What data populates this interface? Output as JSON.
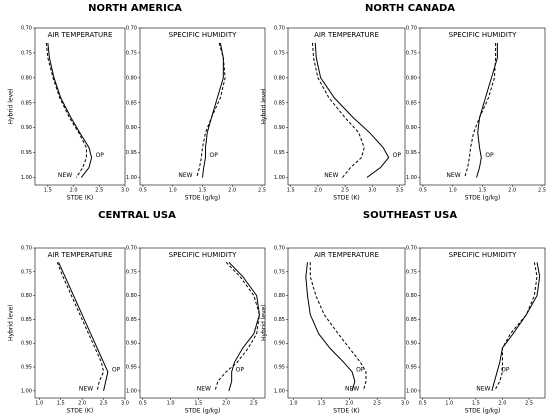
{
  "figure_titles": [
    "NORTH AMERICA",
    "NORTH CANADA",
    "CENTRAL USA",
    "SOUTHEAST USA"
  ],
  "chart_data": [
    {
      "type": "line",
      "title": "AIR TEMPERATURE",
      "x_label": "STDE (K)",
      "y_label": "Hybrid level",
      "y": [
        0.73,
        0.76,
        0.8,
        0.84,
        0.88,
        0.91,
        0.94,
        0.96,
        0.98,
        1.0
      ],
      "xlim": [
        1.25,
        3.0
      ],
      "xticks": [
        1.5,
        {
          "value": 2,
          "label": "2.0"
        },
        2.5,
        {
          "value": 3,
          "label": "3.0"
        }
      ],
      "ylim": [
        1.015,
        0.7
      ],
      "yticks": [
        {
          "value": 0.7,
          "label": "0.70"
        },
        0.75,
        {
          "value": 0.8,
          "label": "0.80"
        },
        0.85,
        {
          "value": 0.9,
          "label": "0.90"
        },
        0.95,
        {
          "value": 1,
          "label": "1.00"
        }
      ],
      "series": [
        {
          "name": "OP",
          "color": "#000000",
          "dash": false,
          "values": [
            1.5,
            1.53,
            1.62,
            1.75,
            1.95,
            2.12,
            2.3,
            2.35,
            2.3,
            2.15
          ]
        },
        {
          "name": "NEW",
          "color": "#000000",
          "dash": true,
          "values": [
            1.47,
            1.5,
            1.6,
            1.73,
            1.92,
            2.1,
            2.25,
            2.25,
            2.18,
            2.05
          ]
        }
      ]
    },
    {
      "type": "line",
      "title": "SPECIFIC HUMIDITY",
      "x_label": "STDE (g/kg)",
      "y": [
        0.73,
        0.76,
        0.8,
        0.84,
        0.88,
        0.91,
        0.94,
        0.96,
        0.98,
        1.0
      ],
      "xlim": [
        0.45,
        2.55
      ],
      "xticks": [
        0.5,
        {
          "value": 1,
          "label": "1.0"
        },
        1.5,
        {
          "value": 2,
          "label": "2.0"
        },
        2.5
      ],
      "ylim": [
        1.015,
        0.7
      ],
      "yticks": [
        {
          "value": 0.7,
          "label": "0.70"
        },
        0.75,
        {
          "value": 0.8,
          "label": "0.80"
        },
        0.85,
        {
          "value": 0.9,
          "label": "0.90"
        },
        0.95,
        {
          "value": 1,
          "label": "1.00"
        }
      ],
      "series": [
        {
          "name": "OP",
          "color": "#000000",
          "dash": false,
          "values": [
            1.8,
            1.85,
            1.85,
            1.75,
            1.65,
            1.58,
            1.55,
            1.55,
            1.52,
            1.5
          ]
        },
        {
          "name": "NEW",
          "color": "#000000",
          "dash": true,
          "values": [
            1.78,
            1.85,
            1.88,
            1.8,
            1.65,
            1.55,
            1.5,
            1.48,
            1.45,
            1.4
          ]
        }
      ]
    },
    {
      "type": "line",
      "title": "AIR TEMPERATURE",
      "x_label": "STDE (K)",
      "y_label": "Hybrid level",
      "y": [
        0.73,
        0.76,
        0.8,
        0.84,
        0.88,
        0.91,
        0.94,
        0.96,
        0.98,
        1.0
      ],
      "xlim": [
        1.45,
        3.6
      ],
      "xticks": [
        1.5,
        {
          "value": 2,
          "label": "2.0"
        },
        2.5,
        {
          "value": 3,
          "label": "3.0"
        },
        3.5
      ],
      "ylim": [
        1.015,
        0.7
      ],
      "yticks": [
        {
          "value": 0.7,
          "label": "0.70"
        },
        0.75,
        {
          "value": 0.8,
          "label": "0.80"
        },
        0.85,
        {
          "value": 0.9,
          "label": "0.90"
        },
        0.95,
        {
          "value": 1,
          "label": "1.00"
        }
      ],
      "series": [
        {
          "name": "OP",
          "color": "#000000",
          "dash": false,
          "values": [
            1.95,
            1.97,
            2.05,
            2.3,
            2.65,
            2.95,
            3.2,
            3.3,
            3.15,
            2.9
          ]
        },
        {
          "name": "NEW",
          "color": "#000000",
          "dash": true,
          "values": [
            1.9,
            1.92,
            2.0,
            2.2,
            2.5,
            2.75,
            2.85,
            2.8,
            2.6,
            2.45
          ]
        }
      ]
    },
    {
      "type": "line",
      "title": "SPECIFIC HUMIDITY",
      "x_label": "STDE (g/kg)",
      "y": [
        0.73,
        0.76,
        0.8,
        0.84,
        0.88,
        0.91,
        0.94,
        0.96,
        0.98,
        1.0
      ],
      "xlim": [
        0.45,
        2.55
      ],
      "xticks": [
        0.5,
        {
          "value": 1,
          "label": "1.0"
        },
        1.5,
        {
          "value": 2,
          "label": "2.0"
        },
        2.5
      ],
      "ylim": [
        1.015,
        0.7
      ],
      "yticks": [
        {
          "value": 0.7,
          "label": "0.70"
        },
        0.75,
        {
          "value": 0.8,
          "label": "0.80"
        },
        0.85,
        {
          "value": 0.9,
          "label": "0.90"
        },
        0.95,
        {
          "value": 1,
          "label": "1.00"
        }
      ],
      "series": [
        {
          "name": "OP",
          "color": "#000000",
          "dash": false,
          "values": [
            1.75,
            1.75,
            1.65,
            1.55,
            1.45,
            1.42,
            1.45,
            1.48,
            1.45,
            1.4
          ]
        },
        {
          "name": "NEW",
          "color": "#000000",
          "dash": true,
          "values": [
            1.72,
            1.72,
            1.7,
            1.6,
            1.45,
            1.35,
            1.3,
            1.28,
            1.25,
            1.2
          ]
        }
      ]
    },
    {
      "type": "line",
      "title": "AIR TEMPERATURE",
      "x_label": "STDE (K)",
      "y_label": "Hybrid level",
      "y": [
        0.73,
        0.76,
        0.8,
        0.84,
        0.88,
        0.91,
        0.94,
        0.96,
        0.98,
        1.0
      ],
      "xlim": [
        0.9,
        3.0
      ],
      "xticks": [
        {
          "value": 1,
          "label": "1.0"
        },
        1.5,
        {
          "value": 2,
          "label": "2.0"
        },
        2.5,
        {
          "value": 3,
          "label": "3.0"
        }
      ],
      "ylim": [
        1.015,
        0.7
      ],
      "yticks": [
        {
          "value": 0.7,
          "label": "0.70"
        },
        0.75,
        {
          "value": 0.8,
          "label": "0.80"
        },
        0.85,
        {
          "value": 0.9,
          "label": "0.90"
        },
        0.95,
        {
          "value": 1,
          "label": "1.00"
        }
      ],
      "series": [
        {
          "name": "OP",
          "color": "#000000",
          "dash": false,
          "values": [
            1.45,
            1.6,
            1.8,
            2.0,
            2.2,
            2.35,
            2.5,
            2.6,
            2.55,
            2.5
          ]
        },
        {
          "name": "NEW",
          "color": "#000000",
          "dash": true,
          "values": [
            1.42,
            1.55,
            1.75,
            1.95,
            2.15,
            2.3,
            2.45,
            2.5,
            2.4,
            2.35
          ]
        }
      ]
    },
    {
      "type": "line",
      "title": "SPECIFIC HUMIDITY",
      "x_label": "STDE (g/kg)",
      "y": [
        0.73,
        0.76,
        0.8,
        0.84,
        0.88,
        0.91,
        0.94,
        0.96,
        0.98,
        1.0
      ],
      "xlim": [
        0.45,
        2.7
      ],
      "xticks": [
        0.5,
        {
          "value": 1,
          "label": "1.0"
        },
        1.5,
        {
          "value": 2,
          "label": "2.0"
        },
        2.5
      ],
      "ylim": [
        1.015,
        0.7
      ],
      "yticks": [
        {
          "value": 0.7,
          "label": "0.70"
        },
        0.75,
        {
          "value": 0.8,
          "label": "0.80"
        },
        0.85,
        {
          "value": 0.9,
          "label": "0.90"
        },
        0.95,
        {
          "value": 1,
          "label": "1.00"
        }
      ],
      "series": [
        {
          "name": "OP",
          "color": "#000000",
          "dash": false,
          "values": [
            2.05,
            2.3,
            2.55,
            2.6,
            2.5,
            2.3,
            2.15,
            2.1,
            2.1,
            2.05
          ]
        },
        {
          "name": "NEW",
          "color": "#000000",
          "dash": true,
          "values": [
            2.0,
            2.25,
            2.5,
            2.6,
            2.55,
            2.4,
            2.2,
            2.0,
            1.85,
            1.8
          ]
        }
      ]
    },
    {
      "type": "line",
      "title": "AIR TEMPERATURE",
      "x_label": "STDE (K)",
      "y_label": "Hybrid level",
      "y": [
        0.73,
        0.76,
        0.8,
        0.84,
        0.88,
        0.91,
        0.94,
        0.96,
        0.98,
        1.0
      ],
      "xlim": [
        0.9,
        3.0
      ],
      "xticks": [
        {
          "value": 1,
          "label": "1.0"
        },
        1.5,
        {
          "value": 2,
          "label": "2.0"
        },
        2.5,
        {
          "value": 3,
          "label": "3.0"
        }
      ],
      "ylim": [
        1.015,
        0.7
      ],
      "yticks": [
        {
          "value": 0.7,
          "label": "0.70"
        },
        0.75,
        {
          "value": 0.8,
          "label": "0.80"
        },
        0.85,
        {
          "value": 0.9,
          "label": "0.90"
        },
        0.95,
        {
          "value": 1,
          "label": "1.00"
        }
      ],
      "series": [
        {
          "name": "OP",
          "color": "#000000",
          "dash": false,
          "values": [
            1.25,
            1.22,
            1.25,
            1.3,
            1.45,
            1.65,
            1.9,
            2.05,
            2.1,
            2.05
          ]
        },
        {
          "name": "NEW",
          "color": "#000000",
          "dash": true,
          "values": [
            1.3,
            1.3,
            1.4,
            1.55,
            1.8,
            2.0,
            2.2,
            2.3,
            2.3,
            2.25
          ]
        }
      ]
    },
    {
      "type": "line",
      "title": "SPECIFIC HUMIDITY",
      "x_label": "STDE (g/kg)",
      "y": [
        0.73,
        0.76,
        0.8,
        0.84,
        0.88,
        0.91,
        0.94,
        0.96,
        0.98,
        1.0
      ],
      "xlim": [
        0.45,
        2.8
      ],
      "xticks": [
        0.5,
        {
          "value": 1,
          "label": "1.0"
        },
        1.5,
        {
          "value": 2,
          "label": "2.0"
        },
        2.5
      ],
      "ylim": [
        1.015,
        0.7
      ],
      "yticks": [
        {
          "value": 0.7,
          "label": "0.70"
        },
        0.75,
        {
          "value": 0.8,
          "label": "0.80"
        },
        0.85,
        {
          "value": 0.9,
          "label": "0.90"
        },
        0.95,
        {
          "value": 1,
          "label": "1.00"
        }
      ],
      "series": [
        {
          "name": "OP",
          "color": "#000000",
          "dash": false,
          "values": [
            2.65,
            2.7,
            2.65,
            2.45,
            2.2,
            2.0,
            1.95,
            1.9,
            1.85,
            1.8
          ]
        },
        {
          "name": "NEW",
          "color": "#000000",
          "dash": true,
          "values": [
            2.6,
            2.65,
            2.6,
            2.45,
            2.15,
            2.0,
            2.0,
            2.0,
            1.95,
            1.85
          ]
        }
      ]
    }
  ]
}
